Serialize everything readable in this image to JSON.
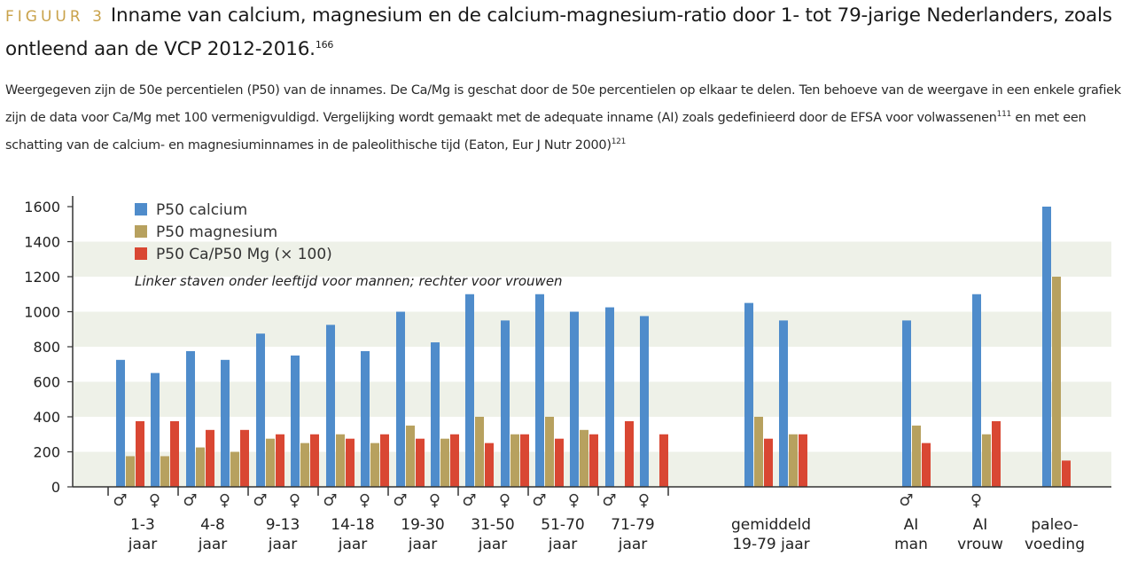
{
  "figure": {
    "label": "FIGUUR 3",
    "title": "Inname van calcium, magnesium en de calcium-magnesium-ratio door 1- tot 79-jarige Nederlanders, zoals ontleend aan de VCP 2012-2016.",
    "title_ref": "166",
    "caption_1": "Weergegeven zijn de 50e percentielen (P50) van de innames. De Ca/Mg is geschat door de 50e percentielen op elkaar te delen. Ten behoeve van de weergave in een enkele grafiek zijn de data voor Ca/Mg met 100 vermenigvuldigd. Vergelijking wordt gemaakt met de adequate inname (AI) zoals gedefinieerd door de EFSA voor volwassenen",
    "caption_ref_1": "111",
    "caption_2": " en met een schatting van de calcium- en magnesiuminnames in de paleolithische tijd (Eaton, Eur J Nutr 2000)",
    "caption_ref_2": "121"
  },
  "chart_data": {
    "type": "bar",
    "ylim": [
      0,
      1600
    ],
    "yticks": [
      0,
      200,
      400,
      600,
      800,
      1000,
      1200,
      1400,
      1600
    ],
    "grid": "alternating horizontal bands",
    "legend_placement": "top-left",
    "note": "Linker staven onder leeftijd voor mannen; rechter voor vrouwen",
    "colors": {
      "calcium": "#4f8ccb",
      "magnesium": "#b7a15f",
      "ratio": "#d94733",
      "band": "#eef1e8"
    },
    "series": [
      {
        "name": "P50 calcium",
        "key": "calcium"
      },
      {
        "name": "P50 magnesium",
        "key": "magnesium"
      },
      {
        "name": "P50 Ca/P50 Mg (× 100)",
        "key": "ratio"
      }
    ],
    "bar_groups": [
      {
        "symbol": "♂",
        "values": [
          725,
          175,
          375
        ]
      },
      {
        "symbol": "♀",
        "values": [
          650,
          175,
          375
        ]
      },
      {
        "symbol": "♂",
        "values": [
          775,
          225,
          325
        ]
      },
      {
        "symbol": "♀",
        "values": [
          725,
          200,
          325
        ]
      },
      {
        "symbol": "♂",
        "values": [
          875,
          275,
          300
        ]
      },
      {
        "symbol": "♀",
        "values": [
          750,
          250,
          300
        ]
      },
      {
        "symbol": "♂",
        "values": [
          925,
          300,
          275
        ]
      },
      {
        "symbol": "♀",
        "values": [
          775,
          250,
          300
        ]
      },
      {
        "symbol": "♂",
        "values": [
          1000,
          350,
          275
        ]
      },
      {
        "symbol": "♀",
        "values": [
          825,
          275,
          300
        ]
      },
      {
        "symbol": "♂",
        "values": [
          1100,
          400,
          250
        ]
      },
      {
        "symbol": "♀",
        "values": [
          950,
          300,
          300
        ]
      },
      {
        "symbol": "♂",
        "values": [
          1100,
          400,
          275
        ]
      },
      {
        "symbol": "♀",
        "values": [
          1000,
          325,
          300
        ]
      },
      {
        "symbol": "♂",
        "values": [
          1025,
          null,
          375
        ]
      },
      {
        "symbol": "♀",
        "values": [
          975,
          null,
          300
        ]
      },
      {
        "symbol": "",
        "values": [
          1050,
          400,
          275
        ]
      },
      {
        "symbol": "",
        "values": [
          950,
          300,
          300
        ]
      },
      {
        "symbol": "♂",
        "values": [
          950,
          350,
          250
        ]
      },
      {
        "symbol": "♀",
        "values": [
          1100,
          300,
          375
        ]
      },
      {
        "symbol": "",
        "values": [
          1600,
          1200,
          150
        ]
      }
    ],
    "categories": [
      {
        "line1": "1-3",
        "line2": "jaar"
      },
      {
        "line1": "4-8",
        "line2": "jaar"
      },
      {
        "line1": "9-13",
        "line2": "jaar"
      },
      {
        "line1": "14-18",
        "line2": "jaar"
      },
      {
        "line1": "19-30",
        "line2": "jaar"
      },
      {
        "line1": "31-50",
        "line2": "jaar"
      },
      {
        "line1": "51-70",
        "line2": "jaar"
      },
      {
        "line1": "71-79",
        "line2": "jaar"
      },
      {
        "line1": "gemiddeld",
        "line2": "19-79 jaar"
      },
      {
        "line1": "AI",
        "line2": "man"
      },
      {
        "line1": "AI",
        "line2": "vrouw"
      },
      {
        "line1": "paleo-",
        "line2": "voeding"
      }
    ]
  }
}
